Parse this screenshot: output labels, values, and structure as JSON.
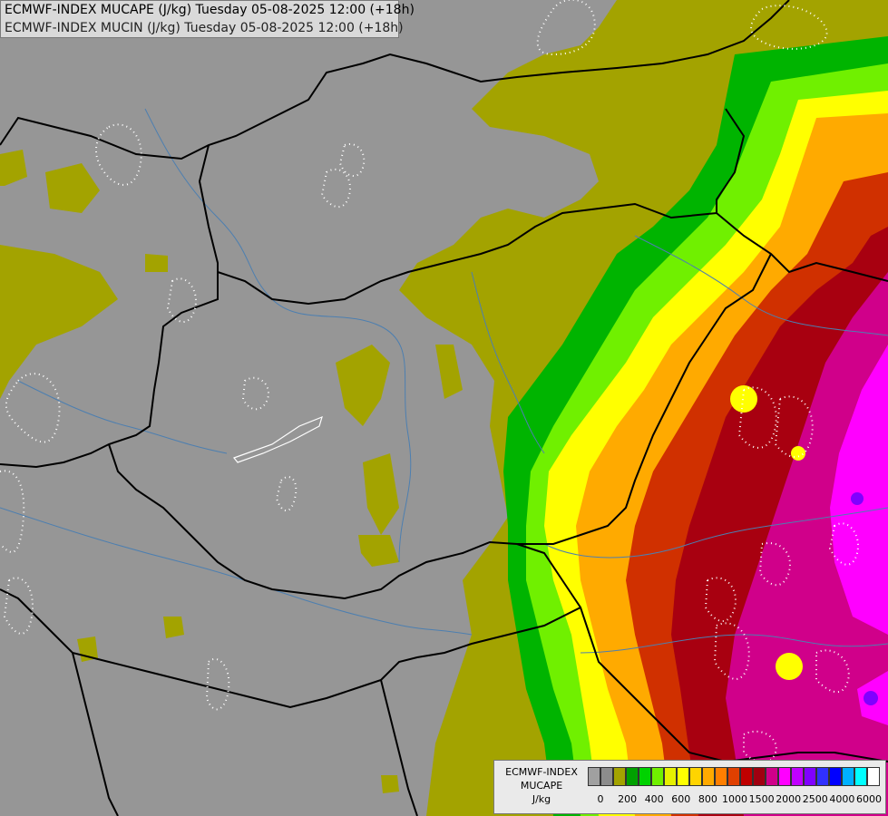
{
  "title": {
    "line1": "ECMWF-INDEX MUCAPE (J/kg) Tuesday 05-08-2025 12:00 (+18h)",
    "line2": "ECMWF-INDEX MUCIN (J/kg) Tuesday 05-08-2025 12:00 (+18h)"
  },
  "legend": {
    "title_line1": "ECMWF-INDEX",
    "title_line2": "MUCAPE",
    "title_line3": "J/kg",
    "tick_labels": [
      "0",
      "200",
      "400",
      "600",
      "800",
      "1000",
      "1500",
      "2000",
      "2500",
      "4000",
      "6000"
    ],
    "colors": [
      "#a0a0a0",
      "#8c8c8c",
      "#a3a300",
      "#00a000",
      "#00d200",
      "#70f000",
      "#e6f000",
      "#ffff00",
      "#ffd400",
      "#ffaa00",
      "#ff7f00",
      "#e04000",
      "#c00000",
      "#a00010",
      "#d0008a",
      "#ff00ff",
      "#c000ff",
      "#8000ff",
      "#3030ff",
      "#0000ff",
      "#00b0ff",
      "#00ffff",
      "#ffffff"
    ]
  },
  "colors": {
    "background": "#969696",
    "borders": "#000000",
    "rivers": "#4d7fb0",
    "cin_contours": "#ffffff"
  }
}
